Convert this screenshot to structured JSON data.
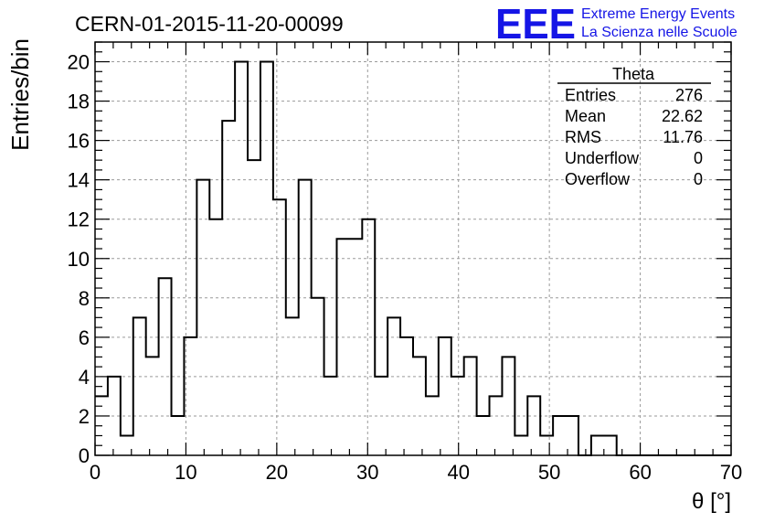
{
  "header": {
    "run_title": "CERN-01-2015-11-20-00099",
    "logo_text": "EEE",
    "logo_line1": "Extreme Energy Events",
    "logo_line2": "La Scienza nelle Scuole",
    "logo_color": "#1515e6"
  },
  "stats_box": {
    "title": "Theta",
    "rows": [
      {
        "label": "Entries",
        "value": "276"
      },
      {
        "label": "Mean",
        "value": "22.62"
      },
      {
        "label": "RMS",
        "value": "11.76"
      },
      {
        "label": "Underflow",
        "value": "0"
      },
      {
        "label": "Overflow",
        "value": "0"
      }
    ]
  },
  "chart_data": {
    "type": "bar",
    "histogram": true,
    "bin_width": 1.4,
    "x_start": 0,
    "xlabel": "θ [°]",
    "ylabel": "Entries/bin",
    "xlim": [
      0,
      70
    ],
    "ylim": [
      0,
      21
    ],
    "x_ticks": [
      0,
      10,
      20,
      30,
      40,
      50,
      60,
      70
    ],
    "y_ticks": [
      0,
      2,
      4,
      6,
      8,
      10,
      12,
      14,
      16,
      18,
      20
    ],
    "grid": true,
    "line_color": "#000000",
    "values": [
      3,
      4,
      1,
      7,
      5,
      9,
      2,
      6,
      14,
      12,
      17,
      20,
      15,
      20,
      13,
      7,
      14,
      8,
      4,
      11,
      11,
      12,
      4,
      7,
      6,
      5,
      3,
      6,
      4,
      5,
      2,
      3,
      5,
      1,
      3,
      1,
      2,
      2,
      0,
      1,
      1,
      0,
      0,
      0,
      0,
      0,
      0,
      0,
      0,
      0
    ]
  }
}
